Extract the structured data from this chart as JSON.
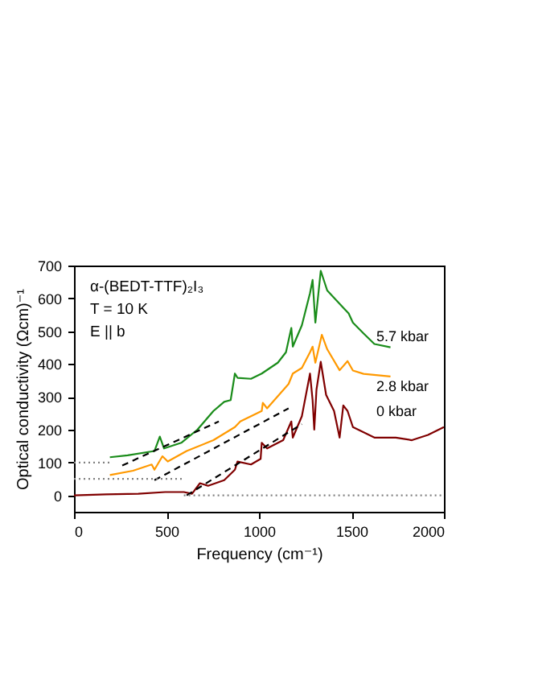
{
  "chart_data": {
    "type": "line",
    "xlabel": "Frequency (cm⁻¹)",
    "ylabel": "Optical conductivity (Ωcm)⁻¹",
    "annotations": [
      "α-(BEDT-TTF)₂I₃",
      "T = 10 K",
      "E || b"
    ],
    "xlim": [
      0,
      2000
    ],
    "ylim": [
      -50,
      700
    ],
    "xticks": [
      0,
      500,
      1000,
      1500,
      2000
    ],
    "yticks": [
      0,
      100,
      200,
      300,
      400,
      500,
      600,
      700
    ],
    "grid": false,
    "legend": false,
    "series": [
      {
        "name": "5.7 kbar",
        "color": "#1a8c1a",
        "line_style": "solid",
        "x": [
          194,
          290,
          435,
          464,
          487,
          580,
          667,
          754,
          812,
          847,
          870,
          884,
          957,
          1015,
          1102,
          1146,
          1175,
          1183,
          1232,
          1276,
          1290,
          1305,
          1334,
          1369,
          1450,
          1485,
          1508,
          1566,
          1624,
          1711
        ],
        "values": [
          116,
          122,
          135,
          179,
          143,
          160,
          200,
          257,
          285,
          290,
          371,
          358,
          355,
          371,
          404,
          436,
          510,
          453,
          518,
          616,
          656,
          526,
          684,
          624,
          575,
          554,
          526,
          493,
          461,
          451
        ]
      },
      {
        "name": "2.8 kbar",
        "color": "#ff9900",
        "line_style": "solid",
        "x": [
          194,
          319,
          420,
          435,
          478,
          507,
          609,
          754,
          870,
          899,
          1015,
          1021,
          1044,
          1160,
          1183,
          1232,
          1276,
          1290,
          1305,
          1340,
          1369,
          1436,
          1479,
          1508,
          1566,
          1711
        ],
        "values": [
          62,
          75,
          94,
          78,
          119,
          103,
          135,
          168,
          208,
          225,
          257,
          282,
          265,
          339,
          371,
          388,
          436,
          453,
          404,
          489,
          445,
          381,
          409,
          380,
          370,
          362
        ]
      },
      {
        "name": "0 kbar",
        "color": "#800000",
        "line_style": "solid",
        "x": [
          0,
          174,
          348,
          493,
          594,
          638,
          681,
          725,
          812,
          870,
          884,
          957,
          1009,
          1015,
          1044,
          1131,
          1175,
          1183,
          1232,
          1276,
          1290,
          1299,
          1311,
          1334,
          1363,
          1406,
          1436,
          1456,
          1479,
          1508,
          1624,
          1740,
          1827,
          1914,
          2000
        ],
        "values": [
          0,
          3,
          5,
          10,
          10,
          5,
          37,
          29,
          46,
          78,
          103,
          94,
          111,
          160,
          143,
          168,
          225,
          176,
          241,
          371,
          290,
          200,
          322,
          407,
          306,
          257,
          176,
          274,
          257,
          208,
          176,
          176,
          168,
          184,
          208
        ]
      },
      {
        "color": "#000000",
        "line_style": "dashed",
        "x": [
          261,
          783
        ],
        "values": [
          91,
          225
        ]
      },
      {
        "color": "#000000",
        "line_style": "dashed",
        "x": [
          435,
          1160
        ],
        "values": [
          46,
          265
        ]
      },
      {
        "color": "#000000",
        "line_style": "dashed",
        "x": [
          609,
          1232
        ],
        "values": [
          0,
          217
        ]
      },
      {
        "color": "#808080",
        "line_style": "dotted",
        "x": [
          0,
          200
        ],
        "values": [
          100,
          100
        ]
      },
      {
        "color": "#808080",
        "line_style": "dotted",
        "x": [
          0,
          594
        ],
        "values": [
          50,
          50
        ]
      },
      {
        "color": "#808080",
        "line_style": "dotted",
        "x": [
          594,
          2000
        ],
        "values": [
          0,
          0
        ]
      }
    ]
  }
}
